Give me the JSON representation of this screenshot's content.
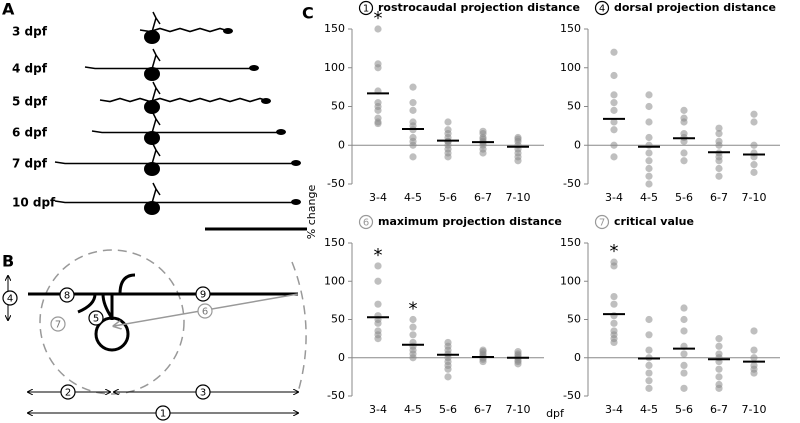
{
  "panel_labels": [
    "A",
    "B",
    "C"
  ],
  "panel_a": {
    "stages": [
      "3 dpf",
      "4 dpf",
      "5 dpf",
      "6 dpf",
      "7 dpf",
      "10 dpf"
    ]
  },
  "panel_b": {
    "markers": [
      "1",
      "2",
      "3",
      "4",
      "5",
      "6",
      "7",
      "8",
      "9"
    ]
  },
  "shared": {
    "y_label": "% change",
    "x_label": "dpf"
  },
  "chart_data": [
    {
      "type": "strip",
      "badge": "1",
      "title": "rostrocaudal projection distance",
      "categories": [
        "3-4",
        "4-5",
        "5-6",
        "6-7",
        "7-10"
      ],
      "points": [
        [
          150,
          105,
          100,
          70,
          55,
          50,
          45,
          35,
          30,
          28
        ],
        [
          75,
          55,
          45,
          30,
          25,
          20,
          10,
          5,
          0,
          -15
        ],
        [
          30,
          20,
          15,
          10,
          5,
          5,
          0,
          -5,
          -10,
          -15
        ],
        [
          18,
          15,
          10,
          8,
          5,
          3,
          0,
          -5,
          -10
        ],
        [
          10,
          8,
          5,
          0,
          -5,
          -10,
          -15,
          -20
        ]
      ],
      "means": [
        67,
        21,
        6,
        4,
        -2
      ],
      "annotations": [
        "*",
        null,
        null,
        null,
        null
      ],
      "ylim": [
        -50,
        150
      ],
      "yticks": [
        -50,
        0,
        50,
        100,
        150
      ],
      "color": "#8a8a8a",
      "mean_color": "#000000",
      "badge_color": "#000000"
    },
    {
      "type": "strip",
      "badge": "4",
      "title": "dorsal projection distance",
      "categories": [
        "3-4",
        "4-5",
        "5-6",
        "6-7",
        "7-10"
      ],
      "points": [
        [
          120,
          90,
          65,
          55,
          45,
          30,
          20,
          0,
          -15
        ],
        [
          65,
          50,
          30,
          10,
          0,
          -10,
          -20,
          -30,
          -40,
          -50
        ],
        [
          45,
          35,
          30,
          15,
          10,
          5,
          -10,
          -20
        ],
        [
          22,
          15,
          5,
          0,
          -10,
          -15,
          -20,
          -30,
          -40
        ],
        [
          40,
          30,
          0,
          -10,
          -15,
          -25,
          -35
        ]
      ],
      "means": [
        34,
        -2,
        9,
        -9,
        -12
      ],
      "annotations": [
        null,
        null,
        null,
        null,
        null
      ],
      "ylim": [
        -50,
        150
      ],
      "yticks": [
        -50,
        0,
        50,
        100,
        150
      ],
      "color": "#8a8a8a",
      "mean_color": "#000000",
      "badge_color": "#000000"
    },
    {
      "type": "strip",
      "badge": "6",
      "title": "maximum projection distance",
      "categories": [
        "3-4",
        "4-5",
        "5-6",
        "6-7",
        "7-10"
      ],
      "points": [
        [
          120,
          100,
          70,
          55,
          50,
          45,
          35,
          30,
          25
        ],
        [
          50,
          40,
          30,
          20,
          15,
          10,
          5,
          0
        ],
        [
          20,
          15,
          10,
          5,
          0,
          -5,
          -10,
          -15,
          -25
        ],
        [
          10,
          8,
          5,
          3,
          0,
          -2,
          -5
        ],
        [
          8,
          5,
          3,
          0,
          -3,
          -5,
          -8
        ]
      ],
      "means": [
        53,
        17,
        4,
        1,
        0
      ],
      "annotations": [
        "*",
        "*",
        null,
        null,
        null
      ],
      "ylim": [
        -50,
        150
      ],
      "yticks": [
        -50,
        0,
        50,
        100,
        150
      ],
      "color": "#8a8a8a",
      "mean_color": "#000000",
      "badge_color": "#999999"
    },
    {
      "type": "strip",
      "badge": "7",
      "title": "critical value",
      "categories": [
        "3-4",
        "4-5",
        "5-6",
        "6-7",
        "7-10"
      ],
      "points": [
        [
          125,
          120,
          80,
          70,
          55,
          45,
          35,
          30,
          25,
          20
        ],
        [
          50,
          30,
          10,
          0,
          -10,
          -20,
          -30,
          -40
        ],
        [
          65,
          50,
          35,
          15,
          5,
          -10,
          -20,
          -40
        ],
        [
          25,
          15,
          5,
          0,
          -5,
          -15,
          -25,
          -35,
          -40
        ],
        [
          35,
          10,
          0,
          -10,
          -15,
          -20
        ]
      ],
      "means": [
        57,
        -1,
        12,
        -2,
        -5
      ],
      "annotations": [
        "*",
        null,
        null,
        null,
        null
      ],
      "ylim": [
        -50,
        150
      ],
      "yticks": [
        -50,
        0,
        50,
        100,
        150
      ],
      "color": "#8a8a8a",
      "mean_color": "#000000",
      "badge_color": "#999999"
    }
  ]
}
